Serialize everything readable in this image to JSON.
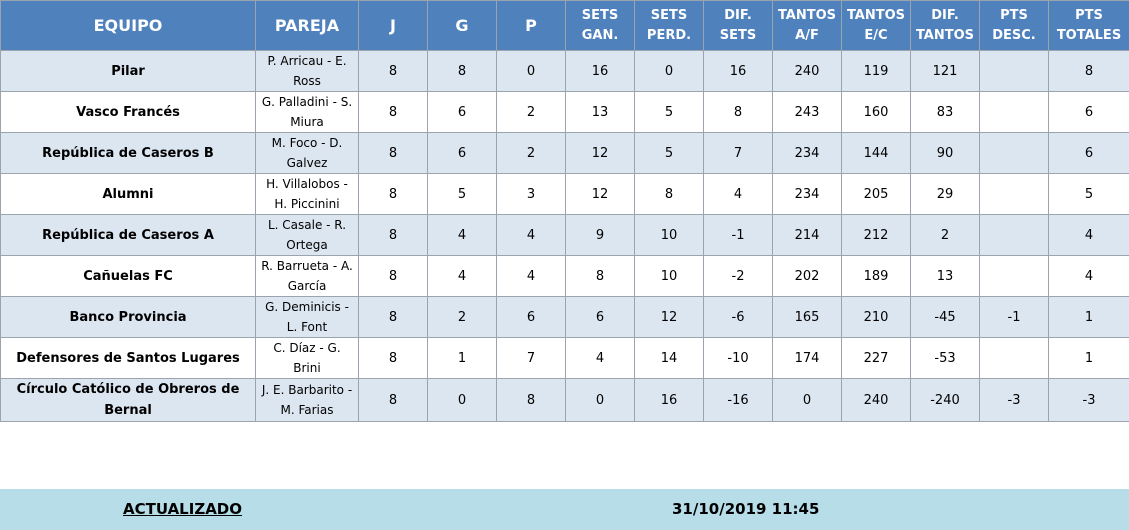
{
  "headers": [
    {
      "label": "EQUIPO",
      "big": true
    },
    {
      "label": "PAREJA",
      "big": true
    },
    {
      "label": "J",
      "big": true
    },
    {
      "label": "G",
      "big": true
    },
    {
      "label": "P",
      "big": true
    },
    {
      "label": "SETS\nGAN.",
      "big": false
    },
    {
      "label": "SETS\nPERD.",
      "big": false
    },
    {
      "label": "DIF. SETS",
      "big": false
    },
    {
      "label": "TANTOS\nA/F",
      "big": false
    },
    {
      "label": "TANTOS\nE/C",
      "big": false
    },
    {
      "label": "DIF.\nTANTOS",
      "big": false
    },
    {
      "label": "PTS\nDESC.",
      "big": false
    },
    {
      "label": "PTS\nTOTALES",
      "big": false
    }
  ],
  "rows": [
    {
      "equipo": "Pilar",
      "pareja": "P. Arricau - E. Ross",
      "j": "8",
      "g": "8",
      "p": "0",
      "sets_gan": "16",
      "sets_perd": "0",
      "dif_sets": "16",
      "tantos_af": "240",
      "tantos_ec": "119",
      "dif_tantos": "121",
      "pts_desc": "",
      "pts_totales": "8"
    },
    {
      "equipo": "Vasco Francés",
      "pareja": "G. Palladini - S. Miura",
      "j": "8",
      "g": "6",
      "p": "2",
      "sets_gan": "13",
      "sets_perd": "5",
      "dif_sets": "8",
      "tantos_af": "243",
      "tantos_ec": "160",
      "dif_tantos": "83",
      "pts_desc": "",
      "pts_totales": "6"
    },
    {
      "equipo": "República de Caseros B",
      "pareja": "M. Foco - D. Galvez",
      "j": "8",
      "g": "6",
      "p": "2",
      "sets_gan": "12",
      "sets_perd": "5",
      "dif_sets": "7",
      "tantos_af": "234",
      "tantos_ec": "144",
      "dif_tantos": "90",
      "pts_desc": "",
      "pts_totales": "6"
    },
    {
      "equipo": "Alumni",
      "pareja": "H. Villalobos - H. Piccinini",
      "j": "8",
      "g": "5",
      "p": "3",
      "sets_gan": "12",
      "sets_perd": "8",
      "dif_sets": "4",
      "tantos_af": "234",
      "tantos_ec": "205",
      "dif_tantos": "29",
      "pts_desc": "",
      "pts_totales": "5"
    },
    {
      "equipo": "República de Caseros A",
      "pareja": "L. Casale - R. Ortega",
      "j": "8",
      "g": "4",
      "p": "4",
      "sets_gan": "9",
      "sets_perd": "10",
      "dif_sets": "-1",
      "tantos_af": "214",
      "tantos_ec": "212",
      "dif_tantos": "2",
      "pts_desc": "",
      "pts_totales": "4"
    },
    {
      "equipo": "Cañuelas FC",
      "pareja": "R. Barrueta - A. García",
      "j": "8",
      "g": "4",
      "p": "4",
      "sets_gan": "8",
      "sets_perd": "10",
      "dif_sets": "-2",
      "tantos_af": "202",
      "tantos_ec": "189",
      "dif_tantos": "13",
      "pts_desc": "",
      "pts_totales": "4"
    },
    {
      "equipo": "Banco Provincia",
      "pareja": "G. Deminicis - L. Font",
      "j": "8",
      "g": "2",
      "p": "6",
      "sets_gan": "6",
      "sets_perd": "12",
      "dif_sets": "-6",
      "tantos_af": "165",
      "tantos_ec": "210",
      "dif_tantos": "-45",
      "pts_desc": "-1",
      "pts_totales": "1"
    },
    {
      "equipo": "Defensores de Santos Lugares",
      "pareja": "C. Díaz - G. Brini",
      "j": "8",
      "g": "1",
      "p": "7",
      "sets_gan": "4",
      "sets_perd": "14",
      "dif_sets": "-10",
      "tantos_af": "174",
      "tantos_ec": "227",
      "dif_tantos": "-53",
      "pts_desc": "",
      "pts_totales": "1"
    },
    {
      "equipo": "Círculo Católico de Obreros de Bernal",
      "pareja": "J. E. Barbarito - M. Farias",
      "j": "8",
      "g": "0",
      "p": "8",
      "sets_gan": "0",
      "sets_perd": "16",
      "dif_sets": "-16",
      "tantos_af": "0",
      "tantos_ec": "240",
      "dif_tantos": "-240",
      "pts_desc": "-3",
      "pts_totales": "-3"
    }
  ],
  "footer": {
    "label": "ACTUALIZADO",
    "date": "31/10/2019 11:45"
  },
  "colors": {
    "header_bg": "#4f81bd",
    "row_stripe": "#dce6f1",
    "footer_bg": "#b7dde8"
  }
}
